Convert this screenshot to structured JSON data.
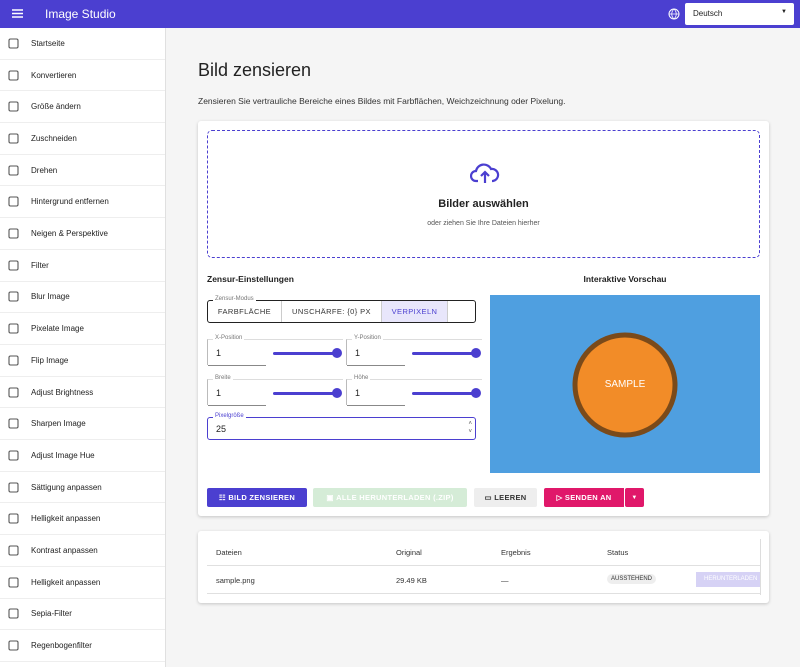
{
  "app_bar": {
    "title": "Image Studio",
    "language": "Deutsch"
  },
  "sidebar": {
    "items": [
      "Startseite",
      "Konvertieren",
      "Größe ändern",
      "Zuschneiden",
      "Drehen",
      "Hintergrund entfernen",
      "Neigen & Perspektive",
      "Filter",
      "Blur Image",
      "Pixelate Image",
      "Flip Image",
      "Adjust Brightness",
      "Sharpen Image",
      "Adjust Image Hue",
      "Sättigung anpassen",
      "Helligkeit anpassen",
      "Kontrast anpassen",
      "Helligkeit anpassen",
      "Sepia-Filter",
      "Regenbogenfilter"
    ]
  },
  "page": {
    "title": "Bild zensieren",
    "description": "Zensieren Sie vertrauliche Bereiche eines Bildes mit Farbflächen, Weichzeichnung oder Pixelung."
  },
  "dropzone": {
    "title": "Bilder auswählen",
    "subtitle": "oder ziehen Sie Ihre Dateien hierher"
  },
  "settings": {
    "title": "Zensur-Einstellungen",
    "mode_label": "Zensur-Modus",
    "modes": [
      "FARBFLÄCHE",
      "UNSCHÄRFE: {0} PX",
      "VERPIXELN"
    ],
    "fields": [
      {
        "label": "X-Position",
        "value": "1"
      },
      {
        "label": "Y-Position",
        "value": "1"
      },
      {
        "label": "Breite",
        "value": "1"
      },
      {
        "label": "Höhe",
        "value": "1"
      }
    ],
    "pixel_size": {
      "label": "Pixelgröße",
      "value": "25"
    }
  },
  "preview": {
    "title": "Interaktive Vorschau",
    "image_text": "SAMPLE"
  },
  "actions": {
    "censor": "BILD ZENSIEREN",
    "download_all": "ALLE HERUNTERLADEN (.ZIP)",
    "clear": "LEEREN",
    "send": "SENDEN AN"
  },
  "table": {
    "headers": [
      "Dateien",
      "Original",
      "Ergebnis",
      "Status"
    ],
    "rows": [
      [
        "sample.png",
        "29.49 KB",
        "—",
        "AUSSTEHEND",
        "HERUNTERLADEN"
      ]
    ]
  }
}
